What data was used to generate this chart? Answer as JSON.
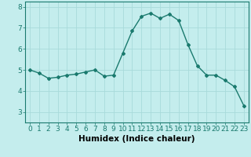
{
  "x": [
    0,
    1,
    2,
    3,
    4,
    5,
    6,
    7,
    8,
    9,
    10,
    11,
    12,
    13,
    14,
    15,
    16,
    17,
    18,
    19,
    20,
    21,
    22,
    23
  ],
  "y": [
    5.0,
    4.85,
    4.6,
    4.65,
    4.75,
    4.8,
    4.9,
    5.0,
    4.7,
    4.75,
    5.8,
    6.85,
    7.55,
    7.7,
    7.45,
    7.65,
    7.35,
    6.2,
    5.2,
    4.75,
    4.75,
    4.5,
    4.2,
    3.3
  ],
  "line_color": "#1a7a6e",
  "bg_color": "#c4eded",
  "grid_color": "#a8dada",
  "xlabel": "Humidex (Indice chaleur)",
  "ylim": [
    2.5,
    8.25
  ],
  "xlim": [
    -0.5,
    23.5
  ],
  "yticks": [
    3,
    4,
    5,
    6,
    7,
    8
  ],
  "xticks": [
    0,
    1,
    2,
    3,
    4,
    5,
    6,
    7,
    8,
    9,
    10,
    11,
    12,
    13,
    14,
    15,
    16,
    17,
    18,
    19,
    20,
    21,
    22,
    23
  ],
  "xlabel_fontsize": 7.5,
  "tick_fontsize": 6.5,
  "marker": "D",
  "marker_size": 2.0,
  "linewidth": 1.0
}
